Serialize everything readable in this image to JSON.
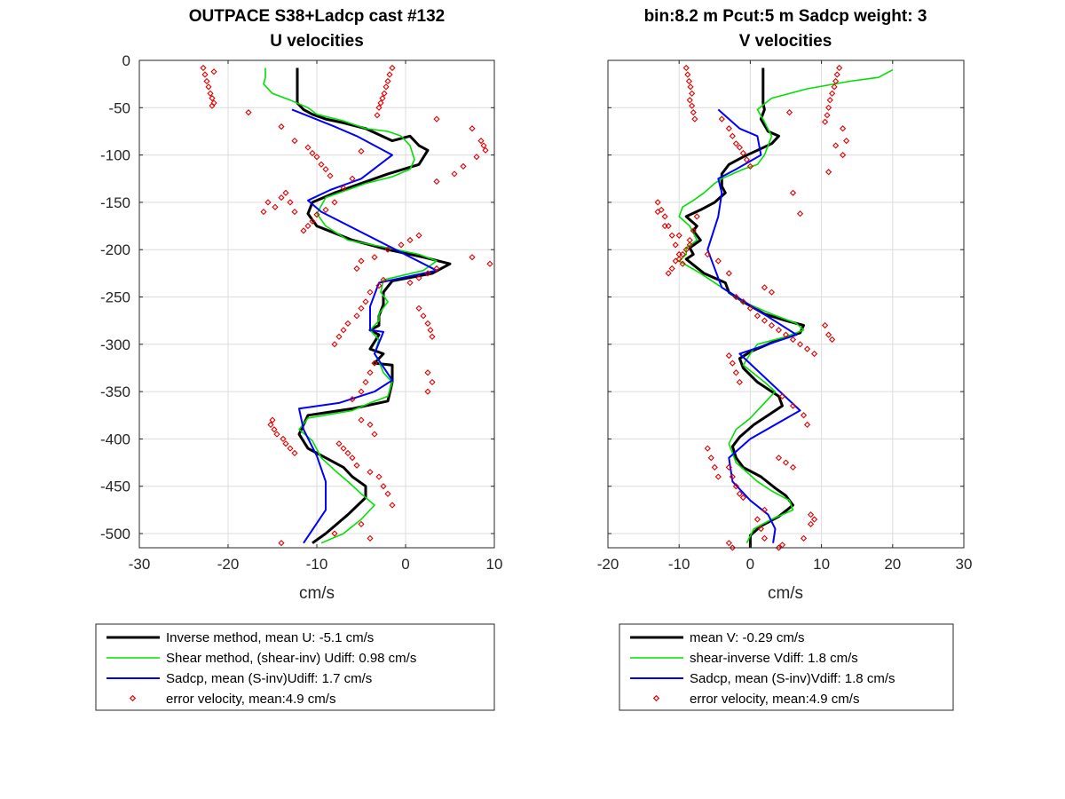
{
  "chart_data": [
    {
      "type": "line",
      "title": [
        "OUTPACE S38+Ladcp cast #132",
        "U velocities"
      ],
      "xlabel": "cm/s",
      "ylabel": "",
      "xlim": [
        -30,
        10
      ],
      "ylim": [
        -515,
        0
      ],
      "xticks": [
        -30,
        -20,
        -10,
        0,
        10
      ],
      "yticks": [
        0,
        -50,
        -100,
        -150,
        -200,
        -250,
        -300,
        -350,
        -400,
        -450,
        -500
      ],
      "xtick_labels": [
        "-30",
        "-20",
        "-10",
        "0",
        "10"
      ],
      "ytick_labels": [
        "0",
        "-50",
        "-100",
        "-150",
        "-200",
        "-250",
        "-300",
        "-350",
        "-400",
        "-450",
        "-500"
      ],
      "grid": true,
      "legend": {
        "placement": "below",
        "entries": [
          "Inverse method, mean U:  -5.1 cm/s",
          "Shear method, (shear-inv)  Udiff:  0.98 cm/s",
          "Sadcp, mean (S-inv)Udiff: 1.7 cm/s",
          "error velocity, mean:4.9 cm/s"
        ]
      },
      "series": [
        {
          "name": "Inverse method, mean U:  -5.1 cm/s",
          "color": "#000000",
          "style": "line-thick",
          "x": [
            -12.2,
            -12.2,
            -12.2,
            -11.5,
            -10.5,
            -9,
            -7,
            -4.5,
            -1.5,
            0.5,
            1.5,
            2.5,
            1.5,
            -2,
            -5,
            -8,
            -10.5,
            -11,
            -10,
            -6,
            -2,
            2,
            5,
            3,
            -1.5,
            -2.5,
            -2.5,
            -3,
            -3,
            -4,
            -3,
            -4,
            -2.5,
            -3.5,
            -1.5,
            -1.5,
            -2,
            -6,
            -11,
            -11.5,
            -12,
            -11,
            -9,
            -8,
            -7,
            -6,
            -4.5,
            -4.5,
            -6.5,
            -9,
            -10.5
          ],
          "y": [
            -8,
            -20,
            -45,
            -52,
            -57,
            -62,
            -66,
            -72,
            -85,
            -80,
            -90,
            -95,
            -110,
            -120,
            -130,
            -140,
            -150,
            -162,
            -175,
            -190,
            -200,
            -208,
            -215,
            -225,
            -233,
            -245,
            -258,
            -270,
            -280,
            -285,
            -290,
            -305,
            -310,
            -320,
            -322,
            -340,
            -360,
            -368,
            -375,
            -385,
            -395,
            -410,
            -420,
            -425,
            -430,
            -440,
            -450,
            -462,
            -480,
            -500,
            -510
          ]
        },
        {
          "name": "Shear method, (shear-inv)  Udiff:  0.98 cm/s",
          "color": "#00e000",
          "style": "line",
          "x": [
            -15.8,
            -15.8,
            -16,
            -15,
            -13,
            -11,
            -10,
            -7,
            -4.5,
            -2,
            -0.5,
            0.5,
            1,
            0.5,
            -1.5,
            -4.5,
            -9,
            -10,
            -9,
            -6.5,
            -2,
            1.5,
            3.5,
            2,
            -2.5,
            -2.8,
            -2,
            -3,
            -3,
            -4,
            -3,
            -3.5,
            -3,
            -2.5,
            -1.5,
            -2,
            -4,
            -6,
            -11,
            -12,
            -10.5,
            -9.5,
            -8,
            -6.5,
            -5,
            -3.5,
            -5,
            -7,
            -9.5
          ],
          "y": [
            -8,
            -18,
            -25,
            -35,
            -42,
            -50,
            -57,
            -64,
            -72,
            -75,
            -80,
            -90,
            -105,
            -115,
            -123,
            -130,
            -145,
            -162,
            -175,
            -190,
            -198,
            -205,
            -212,
            -222,
            -232,
            -245,
            -255,
            -268,
            -275,
            -285,
            -295,
            -310,
            -318,
            -330,
            -340,
            -355,
            -362,
            -370,
            -378,
            -390,
            -402,
            -420,
            -433,
            -445,
            -458,
            -470,
            -485,
            -500,
            -510
          ]
        },
        {
          "name": "Sadcp, mean (S-inv)Udiff: 1.7 cm/s",
          "color": "#0000ff",
          "style": "line",
          "x": [
            -12.8,
            -8,
            -5.5,
            -1.5,
            -5,
            -8.5,
            -11,
            -9.5,
            3.5,
            -3,
            -4,
            -4,
            -2.5,
            -3.5,
            -1.5,
            -3.5,
            -7.5,
            -12,
            -11.5,
            -10,
            -9,
            -9,
            -11.5
          ],
          "y": [
            -52,
            -70,
            -80,
            -100,
            -125,
            -137,
            -148,
            -160,
            -222,
            -235,
            -260,
            -285,
            -287,
            -310,
            -338,
            -350,
            -362,
            -368,
            -390,
            -418,
            -445,
            -475,
            -510
          ]
        },
        {
          "name": "error velocity, mean:4.9 cm/s",
          "color": "#e00000",
          "style": "markers-diamond",
          "x": [
            -22.8,
            -22.6,
            -22.4,
            -22.2,
            -22,
            -21.8,
            -21.6,
            -21.8,
            -21.6,
            -1.5,
            -1.8,
            -2,
            -2.2,
            -2.4,
            -2.6,
            -2.8,
            -3,
            -3.2,
            -17.7,
            -14,
            -12.5,
            -11,
            -10.5,
            -10,
            -9.5,
            -9,
            -8.5,
            3.5,
            7.5,
            8.5,
            8.8,
            9,
            8,
            6.5,
            5.5,
            3.5,
            -5,
            -6,
            -7,
            -8,
            -9,
            -10,
            -10.5,
            -11,
            -11.5,
            -15.5,
            -16,
            -14.7,
            -14,
            -13.5,
            -13,
            -12.5,
            1.5,
            0.5,
            -0.5,
            -2,
            -3.5,
            -5,
            -5.5,
            7.5,
            9.5,
            3.5,
            2.5,
            1.5,
            0.5,
            -2.5,
            -3,
            -4,
            -4.5,
            -5,
            -5.5,
            -6.5,
            -7,
            -7.5,
            -8,
            1.5,
            2,
            2.5,
            2.8,
            3,
            -3.5,
            -4,
            -4.5,
            -5,
            -6,
            2.5,
            3,
            2.5,
            -5,
            -4,
            -3.5,
            -15,
            -15.2,
            -14.8,
            -14.5,
            -13.8,
            -13.5,
            -13,
            -12.5,
            -7.5,
            -7,
            -6.5,
            -6,
            -5.5,
            -4,
            -3,
            -2.5,
            -2,
            -1.5,
            -8,
            -5,
            -4,
            -13,
            -14
          ],
          "y": [
            -8,
            -15,
            -22,
            -28,
            -35,
            -40,
            -45,
            -48,
            -12,
            -8,
            -15,
            -22,
            -28,
            -35,
            -40,
            -45,
            -50,
            -58,
            -55,
            -70,
            -85,
            -92,
            -98,
            -102,
            -110,
            -115,
            -122,
            -62,
            -72,
            -85,
            -90,
            -95,
            -102,
            -112,
            -120,
            -128,
            -96,
            -125,
            -135,
            -150,
            -158,
            -163,
            -170,
            -175,
            -180,
            -150,
            -160,
            -155,
            -145,
            -140,
            -150,
            -160,
            -185,
            -190,
            -195,
            -200,
            -208,
            -212,
            -220,
            -208,
            -215,
            -220,
            -225,
            -230,
            -235,
            -232,
            -238,
            -245,
            -255,
            -262,
            -270,
            -278,
            -285,
            -292,
            -300,
            -262,
            -270,
            -278,
            -285,
            -292,
            -320,
            -330,
            -340,
            -350,
            -358,
            -330,
            -340,
            -350,
            -380,
            -385,
            -395,
            -380,
            -385,
            -390,
            -395,
            -400,
            -405,
            -410,
            -415,
            -405,
            -410,
            -415,
            -420,
            -428,
            -435,
            -440,
            -450,
            -458,
            -470,
            -500,
            -490,
            -505,
            -520,
            -510
          ]
        }
      ]
    },
    {
      "type": "line",
      "title": [
        "bin:8.2 m  Pcut:5 m  Sadcp weight: 3",
        "V velocities"
      ],
      "xlabel": "cm/s",
      "ylabel": "",
      "xlim": [
        -20,
        30
      ],
      "ylim": [
        -515,
        0
      ],
      "xticks": [
        -20,
        -10,
        0,
        10,
        20,
        30
      ],
      "yticks": [
        0,
        -50,
        -100,
        -150,
        -200,
        -250,
        -300,
        -350,
        -400,
        -450,
        -500
      ],
      "xtick_labels": [
        "-20",
        "-10",
        "0",
        "10",
        "20",
        "30"
      ],
      "ytick_labels": [],
      "grid": true,
      "legend": {
        "placement": "below",
        "entries": [
          "mean V:  -0.29 cm/s",
          "shear-inverse Vdiff:  1.8 cm/s",
          "Sadcp, mean (S-inv)Vdiff: 1.8 cm/s",
          "error velocity, mean:4.9 cm/s"
        ]
      },
      "series": [
        {
          "name": "mean V:  -0.29 cm/s",
          "color": "#000000",
          "style": "line-thick",
          "x": [
            1.8,
            1.8,
            1.8,
            2,
            1.5,
            2.5,
            4,
            3,
            1,
            -1,
            -3,
            -4,
            -4,
            -3.5,
            -5,
            -7,
            -9,
            -7.5,
            -8,
            -7,
            -8.5,
            -8,
            -9,
            -6.5,
            -3.5,
            -3,
            -1,
            2,
            5,
            7.5,
            7,
            4,
            0,
            -1.5,
            -1,
            1,
            4,
            4.5,
            2.5,
            0.5,
            -1.5,
            -2.5,
            -2,
            -1,
            1.5,
            3.5,
            5,
            6,
            4,
            1.5,
            0,
            0
          ],
          "y": [
            -8,
            -25,
            -45,
            -52,
            -62,
            -75,
            -80,
            -88,
            -95,
            -102,
            -110,
            -120,
            -133,
            -140,
            -150,
            -158,
            -165,
            -175,
            -180,
            -190,
            -198,
            -205,
            -210,
            -225,
            -235,
            -245,
            -255,
            -268,
            -275,
            -280,
            -288,
            -295,
            -308,
            -315,
            -325,
            -340,
            -355,
            -365,
            -375,
            -385,
            -398,
            -408,
            -420,
            -430,
            -440,
            -452,
            -460,
            -470,
            -482,
            -492,
            -502,
            -515
          ]
        },
        {
          "name": "shear-inverse Vdiff:  1.8 cm/s",
          "color": "#00e000",
          "style": "line",
          "x": [
            20,
            18,
            14,
            8,
            3,
            1,
            2,
            3,
            2,
            1,
            -1,
            -2.5,
            -4,
            -5,
            -6.5,
            -8,
            -9.5,
            -10,
            -8.5,
            -7.5,
            -9,
            -9,
            -10,
            -7,
            -4,
            -1,
            3,
            6.5,
            7.5,
            5,
            1,
            0,
            -1,
            2,
            3.5,
            2,
            0,
            -2,
            -3,
            -2,
            1,
            3,
            5.5,
            6,
            3,
            0.5,
            -0.5
          ],
          "y": [
            -10,
            -18,
            -22,
            -30,
            -40,
            -52,
            -65,
            -80,
            -100,
            -110,
            -115,
            -120,
            -125,
            -130,
            -140,
            -148,
            -155,
            -165,
            -175,
            -190,
            -198,
            -205,
            -212,
            -225,
            -240,
            -255,
            -268,
            -278,
            -285,
            -292,
            -300,
            -310,
            -322,
            -340,
            -350,
            -362,
            -378,
            -390,
            -405,
            -425,
            -445,
            -455,
            -465,
            -475,
            -485,
            -495,
            -510
          ]
        },
        {
          "name": "Sadcp, mean (S-inv)Vdiff: 1.8 cm/s",
          "color": "#0000ff",
          "style": "line",
          "x": [
            -4.5,
            -1.5,
            1,
            1.5,
            -2,
            -4.5,
            -4,
            -4.5,
            -6,
            -4,
            6.5,
            -1.5,
            7,
            0,
            -3,
            -2.5,
            0,
            2.5,
            3.5,
            3.2
          ],
          "y": [
            -52,
            -72,
            -80,
            -100,
            -115,
            -125,
            -140,
            -165,
            -200,
            -240,
            -290,
            -310,
            -370,
            -400,
            -420,
            -445,
            -465,
            -480,
            -495,
            -510
          ]
        },
        {
          "name": "error velocity, mean:4.9 cm/s",
          "color": "#e00000",
          "style": "markers-diamond",
          "x": [
            -9,
            -8.8,
            -8.6,
            -8.4,
            -8.2,
            -8.5,
            -8.2,
            -8,
            -7.8,
            12.5,
            12.2,
            12,
            11.8,
            11.5,
            11.2,
            11,
            10.8,
            10.5,
            -4,
            -3,
            -2.5,
            -2,
            -1.5,
            -1,
            -0.5,
            0,
            5.5,
            13,
            13.5,
            13,
            12,
            11,
            6,
            7,
            -7.5,
            -8,
            -8.5,
            -9,
            -9.5,
            -10,
            -10.5,
            -11,
            -11.5,
            -13,
            -12,
            -10,
            -8.5,
            -6,
            -4.5,
            -3,
            -13,
            -12.5,
            -12,
            -11.5,
            -11,
            -10.5,
            -10,
            -9.5,
            2,
            3,
            -2,
            -1,
            0,
            1,
            2,
            3,
            4,
            5,
            6,
            7,
            8,
            9,
            10.5,
            11,
            11.5,
            -3,
            -2.5,
            -2,
            -1.5,
            4.5,
            6,
            7.5,
            8,
            -3,
            -2.5,
            -2,
            -1.5,
            -1,
            4,
            5,
            6,
            -6,
            -5.5,
            -5,
            -4.5,
            2,
            1,
            1.5,
            2,
            8.5,
            9,
            8.5,
            7.5,
            -3,
            -2.5,
            -2,
            -1,
            0,
            4.5,
            4
          ],
          "y": [
            -8,
            -15,
            -22,
            -28,
            -35,
            -42,
            -48,
            -55,
            -62,
            -8,
            -15,
            -22,
            -28,
            -35,
            -42,
            -50,
            -58,
            -65,
            -62,
            -72,
            -80,
            -88,
            -92,
            -98,
            -105,
            -112,
            -55,
            -72,
            -85,
            -100,
            -90,
            -118,
            -140,
            -162,
            -165,
            -180,
            -190,
            -200,
            -205,
            -210,
            -212,
            -220,
            -225,
            -160,
            -175,
            -185,
            -195,
            -205,
            -212,
            -225,
            -150,
            -158,
            -165,
            -175,
            -185,
            -195,
            -205,
            -215,
            -240,
            -245,
            -250,
            -255,
            -262,
            -270,
            -275,
            -280,
            -285,
            -290,
            -295,
            -300,
            -305,
            -310,
            -280,
            -290,
            -295,
            -312,
            -320,
            -330,
            -340,
            -355,
            -365,
            -375,
            -385,
            -430,
            -440,
            -450,
            -458,
            -462,
            -420,
            -425,
            -430,
            -410,
            -420,
            -430,
            -440,
            -475,
            -485,
            -495,
            -505,
            -480,
            -485,
            -490,
            -505,
            -510,
            -515,
            -520,
            -525,
            -530,
            -512,
            -515
          ]
        }
      ]
    }
  ]
}
